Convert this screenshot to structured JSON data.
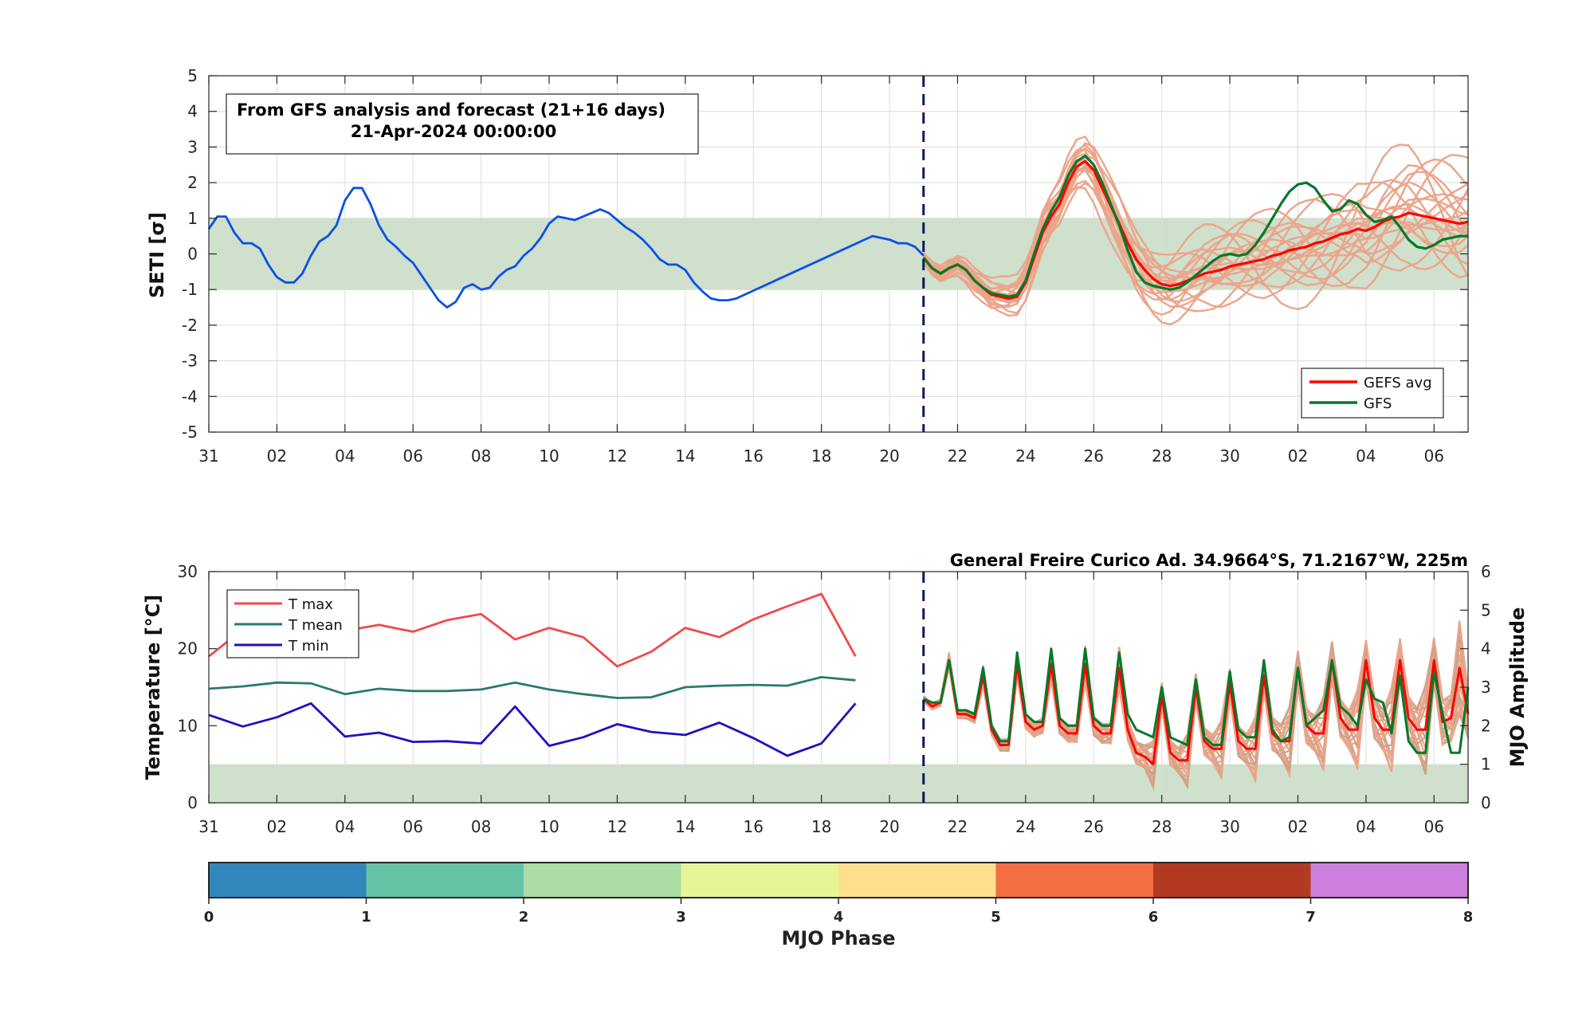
{
  "chart_data": [
    {
      "type": "line",
      "title": "",
      "ylabel": "SETI [σ]",
      "ylim": [
        -5,
        5
      ],
      "yticks": [
        "5",
        "4",
        "3",
        "2",
        "1",
        "0",
        "-1",
        "-2",
        "-3",
        "-4",
        "-5"
      ],
      "xlim": [
        0,
        37
      ],
      "xtick_labels": [
        "31",
        "02",
        "04",
        "06",
        "08",
        "10",
        "12",
        "14",
        "16",
        "18",
        "20",
        "22",
        "24",
        "26",
        "28",
        "30",
        "02",
        "04",
        "06"
      ],
      "normal_band": [
        -1,
        1
      ],
      "forecast_start_x": 21,
      "annotation_lines": [
        "From GFS analysis and forecast (21+16 days)",
        "21-Apr-2024 00:00:00"
      ],
      "legend": {
        "placement": "bottom-right",
        "entries": [
          {
            "label": "GEFS avg",
            "color": "#ff0000"
          },
          {
            "label": "GFS",
            "color": "#007a2a"
          }
        ]
      },
      "series": [
        {
          "role": "analysis",
          "color": "#0a50e6",
          "x": [
            0,
            0.25,
            0.5,
            0.75,
            1,
            1.25,
            1.5,
            1.75,
            2,
            2.25,
            2.5,
            2.75,
            3,
            3.25,
            3.5,
            3.75,
            4,
            4.25,
            4.5,
            4.75,
            5,
            5.25,
            5.5,
            5.75,
            6,
            6.25,
            6.5,
            6.75,
            7,
            7.25,
            7.5,
            7.75,
            8,
            8.25,
            8.5,
            8.75,
            9,
            9.25,
            9.5,
            9.75,
            10,
            10.25,
            10.5,
            10.75,
            11,
            11.25,
            11.5,
            11.75,
            12,
            12.25,
            12.5,
            12.75,
            13,
            13.25,
            13.5,
            13.75,
            14,
            14.25,
            14.5,
            14.75,
            15,
            15.25,
            15.5,
            19.5,
            20,
            20.25,
            20.5,
            20.75,
            21
          ],
          "values": [
            0.7,
            1.05,
            1.05,
            0.6,
            0.3,
            0.3,
            0.15,
            -0.3,
            -0.65,
            -0.8,
            -0.8,
            -0.55,
            -0.05,
            0.35,
            0.5,
            0.8,
            1.5,
            1.85,
            1.85,
            1.4,
            0.8,
            0.4,
            0.2,
            -0.05,
            -0.25,
            -0.6,
            -0.95,
            -1.3,
            -1.5,
            -1.35,
            -0.95,
            -0.85,
            -1.0,
            -0.95,
            -0.65,
            -0.45,
            -0.35,
            -0.05,
            0.15,
            0.45,
            0.85,
            1.05,
            1.0,
            0.95,
            1.05,
            1.15,
            1.25,
            1.15,
            0.95,
            0.75,
            0.6,
            0.4,
            0.15,
            -0.15,
            -0.3,
            -0.3,
            -0.45,
            -0.8,
            -1.05,
            -1.25,
            -1.3,
            -1.3,
            -1.25,
            0.5,
            0.4,
            0.3,
            0.3,
            0.2,
            -0.05
          ]
        },
        {
          "name": "GEFS avg",
          "color": "#ff0000",
          "x": [
            21,
            21.25,
            21.5,
            21.75,
            22,
            22.25,
            22.5,
            22.75,
            23,
            23.25,
            23.5,
            23.75,
            24,
            24.25,
            24.5,
            24.75,
            25,
            25.25,
            25.5,
            25.75,
            26,
            26.25,
            26.5,
            26.75,
            27,
            27.25,
            27.5,
            27.75,
            28,
            28.25,
            28.5,
            28.75,
            29,
            29.25,
            29.5,
            29.75,
            30,
            30.25,
            30.5,
            30.75,
            31,
            31.25,
            31.5,
            31.75,
            32,
            32.25,
            32.5,
            32.75,
            33,
            33.25,
            33.5,
            33.75,
            34,
            34.25,
            34.5,
            34.75,
            35,
            35.25,
            35.5,
            35.75,
            36,
            36.25,
            36.5,
            36.75,
            37
          ],
          "values": [
            -0.1,
            -0.4,
            -0.55,
            -0.4,
            -0.3,
            -0.45,
            -0.75,
            -0.95,
            -1.15,
            -1.2,
            -1.25,
            -1.2,
            -0.8,
            -0.1,
            0.6,
            1.05,
            1.4,
            2.0,
            2.45,
            2.6,
            2.35,
            1.85,
            1.35,
            0.85,
            0.3,
            -0.15,
            -0.45,
            -0.7,
            -0.85,
            -0.9,
            -0.85,
            -0.75,
            -0.65,
            -0.55,
            -0.5,
            -0.45,
            -0.35,
            -0.3,
            -0.25,
            -0.2,
            -0.15,
            -0.05,
            0.0,
            0.1,
            0.15,
            0.2,
            0.3,
            0.35,
            0.45,
            0.55,
            0.6,
            0.7,
            0.65,
            0.75,
            0.9,
            1.0,
            1.05,
            1.15,
            1.1,
            1.05,
            1.0,
            0.95,
            0.9,
            0.85,
            0.9
          ]
        },
        {
          "name": "GFS",
          "color": "#007a2a",
          "x": [
            21,
            21.25,
            21.5,
            21.75,
            22,
            22.25,
            22.5,
            22.75,
            23,
            23.25,
            23.5,
            23.75,
            24,
            24.25,
            24.5,
            24.75,
            25,
            25.25,
            25.5,
            25.75,
            26,
            26.25,
            26.5,
            26.75,
            27,
            27.25,
            27.5,
            27.75,
            28,
            28.25,
            28.5,
            28.75,
            29,
            29.25,
            29.5,
            29.75,
            30,
            30.25,
            30.5,
            30.75,
            31,
            31.25,
            31.5,
            31.75,
            32,
            32.25,
            32.5,
            32.75,
            33,
            33.25,
            33.5,
            33.75,
            34,
            34.25,
            34.5,
            34.75,
            35,
            35.25,
            35.5,
            35.75,
            36,
            36.25,
            36.5,
            36.75,
            37
          ],
          "values": [
            -0.1,
            -0.4,
            -0.55,
            -0.4,
            -0.3,
            -0.45,
            -0.75,
            -0.95,
            -1.1,
            -1.15,
            -1.2,
            -1.15,
            -0.75,
            0.0,
            0.7,
            1.2,
            1.6,
            2.2,
            2.6,
            2.75,
            2.5,
            2.0,
            1.4,
            0.8,
            0.1,
            -0.5,
            -0.8,
            -0.9,
            -0.95,
            -1.0,
            -0.95,
            -0.8,
            -0.6,
            -0.4,
            -0.2,
            -0.05,
            0.0,
            -0.05,
            0.0,
            0.25,
            0.6,
            1.0,
            1.4,
            1.75,
            1.95,
            2.0,
            1.85,
            1.5,
            1.2,
            1.25,
            1.5,
            1.4,
            1.1,
            0.9,
            0.95,
            1.05,
            0.75,
            0.4,
            0.2,
            0.15,
            0.25,
            0.4,
            0.45,
            0.5,
            0.5
          ]
        }
      ]
    },
    {
      "type": "line",
      "title": "General Freire Curico Ad. 34.9664°S, 71.2167°W, 225m",
      "ylabel": "Temperature [°C]",
      "ylabel_right": "MJO Amplitude",
      "ylim": [
        0,
        30
      ],
      "ylim_right": [
        0,
        6
      ],
      "yticks": [
        "30",
        "20",
        "10",
        "0"
      ],
      "yticks_right": [
        "6",
        "5",
        "4",
        "3",
        "2",
        "1",
        "0"
      ],
      "xlim": [
        0,
        37
      ],
      "xtick_labels": [
        "31",
        "02",
        "04",
        "06",
        "08",
        "10",
        "12",
        "14",
        "16",
        "18",
        "20",
        "22",
        "24",
        "26",
        "28",
        "30",
        "02",
        "04",
        "06"
      ],
      "amplitude_band": [
        0,
        1
      ],
      "forecast_start_x": 21,
      "legend": {
        "placement": "top-left",
        "entries": [
          {
            "label": "T max",
            "color": "#f04a4a"
          },
          {
            "label": "T mean",
            "color": "#2a7a70"
          },
          {
            "label": "T min",
            "color": "#2010c0"
          }
        ]
      },
      "series": [
        {
          "name": "T max",
          "color": "#f04a4a",
          "axis": "left",
          "x": [
            0,
            1,
            2,
            3,
            4,
            5,
            6,
            7,
            8,
            9,
            10,
            11,
            12,
            13,
            14,
            15,
            16,
            17,
            18,
            19
          ],
          "values": [
            19,
            22.5,
            23,
            22.5,
            22.3,
            23.1,
            22.2,
            23.7,
            24.5,
            21.2,
            22.7,
            21.5,
            17.7,
            19.6,
            22.7,
            21.5,
            23.8,
            25.5,
            27.1,
            19
          ]
        },
        {
          "name": "T mean",
          "color": "#2a7a70",
          "axis": "left",
          "x": [
            0,
            1,
            2,
            3,
            4,
            5,
            6,
            7,
            8,
            9,
            10,
            11,
            12,
            13,
            14,
            15,
            16,
            17,
            18,
            19
          ],
          "values": [
            14.8,
            15.1,
            15.6,
            15.5,
            14.1,
            14.8,
            14.5,
            14.5,
            14.7,
            15.6,
            14.7,
            14.1,
            13.6,
            13.7,
            15.0,
            15.2,
            15.3,
            15.2,
            16.3,
            15.9
          ]
        },
        {
          "name": "T min",
          "color": "#2010c0",
          "axis": "left",
          "x": [
            0,
            1,
            2,
            3,
            4,
            5,
            6,
            7,
            8,
            9,
            10,
            11,
            12,
            13,
            14,
            15,
            16,
            17,
            18,
            19
          ],
          "values": [
            11.4,
            9.9,
            11.1,
            12.9,
            8.6,
            9.1,
            7.9,
            8.0,
            7.7,
            12.5,
            7.4,
            8.5,
            10.2,
            9.2,
            8.8,
            10.4,
            8.4,
            6.1,
            7.7,
            12.9
          ]
        },
        {
          "role": "GEFS avg amplitude",
          "color": "#ff0000",
          "axis": "right",
          "x": [
            21,
            21.25,
            21.5,
            21.75,
            22,
            22.25,
            22.5,
            22.75,
            23,
            23.25,
            23.5,
            23.75,
            24,
            24.25,
            24.5,
            24.75,
            25,
            25.25,
            25.5,
            25.75,
            26,
            26.25,
            26.5,
            26.75,
            27,
            27.25,
            27.5,
            27.75,
            28,
            28.25,
            28.5,
            28.75,
            29,
            29.25,
            29.5,
            29.75,
            30,
            30.25,
            30.5,
            30.75,
            31,
            31.25,
            31.5,
            31.75,
            32,
            32.25,
            32.5,
            32.75,
            33,
            33.25,
            33.5,
            33.75,
            34,
            34.25,
            34.5,
            34.75,
            35,
            35.25,
            35.5,
            35.75,
            36,
            36.25,
            36.5,
            36.75,
            37
          ],
          "values": [
            2.7,
            2.5,
            2.6,
            3.7,
            2.3,
            2.3,
            2.2,
            3.3,
            1.9,
            1.5,
            1.5,
            3.6,
            2.1,
            1.9,
            2.0,
            3.6,
            2.0,
            1.8,
            1.8,
            3.6,
            2.0,
            1.8,
            1.8,
            3.5,
            1.9,
            1.3,
            1.2,
            1.0,
            2.8,
            1.3,
            1.1,
            1.1,
            3.0,
            1.6,
            1.4,
            1.4,
            3.1,
            1.6,
            1.4,
            1.4,
            3.3,
            1.8,
            1.6,
            1.6,
            3.5,
            2.0,
            1.8,
            1.8,
            3.7,
            2.2,
            1.9,
            1.9,
            3.7,
            2.2,
            1.9,
            1.9,
            3.7,
            2.2,
            1.9,
            1.9,
            3.7,
            2.1,
            2.2,
            3.5,
            2.3
          ]
        },
        {
          "role": "GFS amplitude",
          "color": "#007a2a",
          "axis": "right",
          "x": [
            21,
            21.25,
            21.5,
            21.75,
            22,
            22.25,
            22.5,
            22.75,
            23,
            23.25,
            23.5,
            23.75,
            24,
            24.25,
            24.5,
            24.75,
            25,
            25.25,
            25.5,
            25.75,
            26,
            26.25,
            26.5,
            26.75,
            27,
            27.25,
            27.5,
            27.75,
            28,
            28.25,
            28.5,
            28.75,
            29,
            29.25,
            29.5,
            29.75,
            30,
            30.25,
            30.5,
            30.75,
            31,
            31.25,
            31.5,
            31.75,
            32,
            32.25,
            32.5,
            32.75,
            33,
            33.25,
            33.5,
            33.75,
            34,
            34.25,
            34.5,
            34.75,
            35,
            35.25,
            35.5,
            35.75,
            36,
            36.25,
            36.5,
            36.75,
            37
          ],
          "values": [
            2.7,
            2.6,
            2.6,
            3.7,
            2.4,
            2.4,
            2.3,
            3.5,
            2.0,
            1.6,
            1.6,
            3.9,
            2.3,
            2.1,
            2.1,
            4.0,
            2.2,
            2.0,
            2.0,
            4.0,
            2.2,
            2.0,
            2.0,
            3.9,
            2.3,
            1.9,
            1.8,
            1.7,
            3.0,
            1.7,
            1.6,
            1.5,
            3.2,
            1.7,
            1.5,
            1.5,
            3.4,
            1.9,
            1.7,
            1.7,
            3.7,
            1.9,
            1.6,
            1.7,
            3.5,
            2.0,
            2.2,
            2.4,
            3.7,
            2.5,
            2.3,
            2.0,
            3.2,
            2.7,
            2.6,
            1.8,
            3.3,
            1.6,
            1.3,
            1.3,
            3.4,
            2.3,
            1.3,
            1.3,
            3.0
          ]
        }
      ]
    },
    {
      "type": "colorbar",
      "xlabel": "MJO Phase",
      "ticks": [
        "0",
        "1",
        "2",
        "3",
        "4",
        "5",
        "6",
        "7",
        "8"
      ],
      "colors": [
        "#3288bd",
        "#66c2a5",
        "#abdda4",
        "#e6f598",
        "#fee08b",
        "#f46d43",
        "#b33a22",
        "#cc7fdc"
      ]
    }
  ]
}
